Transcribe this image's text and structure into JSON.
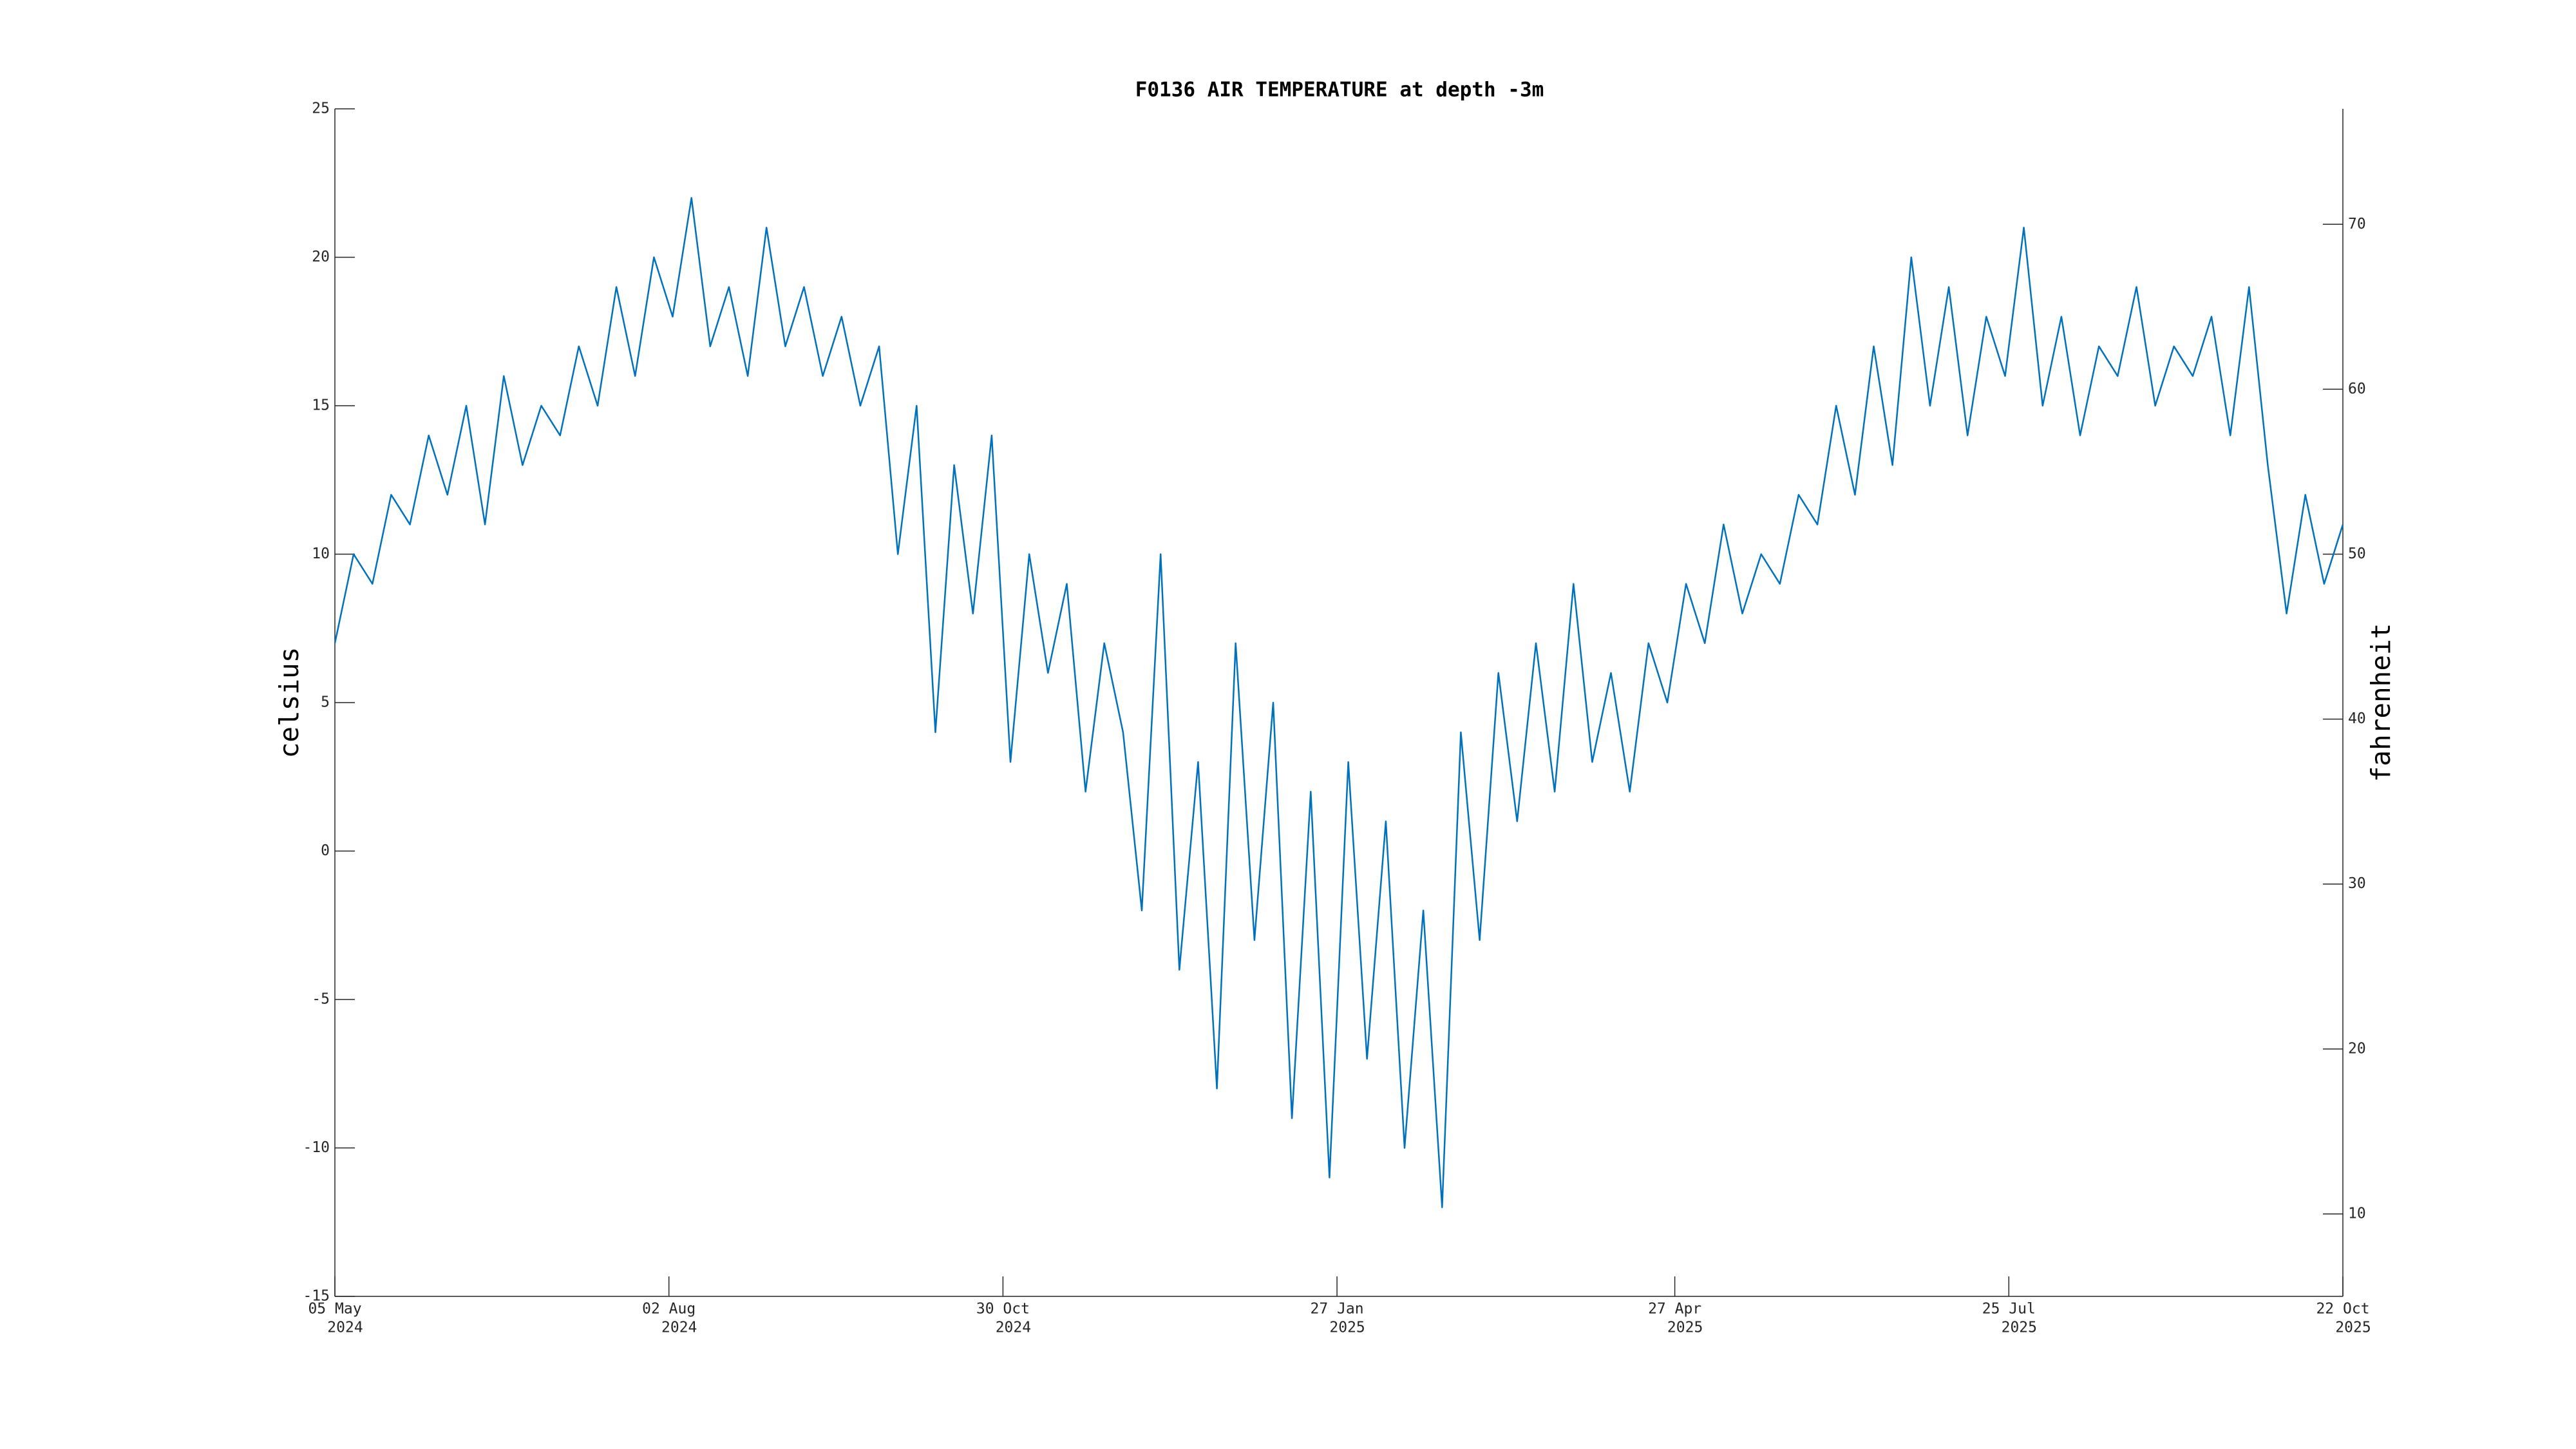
{
  "chart_data": {
    "type": "line",
    "title": "F0136 AIR TEMPERATURE at depth -3m",
    "ylabel": "celsius",
    "y2label": "fahrenheit",
    "x": [
      "2024-05-05",
      "2024-05-10",
      "2024-05-15",
      "2024-05-20",
      "2024-05-25",
      "2024-05-30",
      "2024-06-04",
      "2024-06-09",
      "2024-06-14",
      "2024-06-19",
      "2024-06-24",
      "2024-06-29",
      "2024-07-04",
      "2024-07-09",
      "2024-07-14",
      "2024-07-19",
      "2024-07-24",
      "2024-07-29",
      "2024-08-03",
      "2024-08-08",
      "2024-08-13",
      "2024-08-18",
      "2024-08-23",
      "2024-08-28",
      "2024-09-02",
      "2024-09-07",
      "2024-09-12",
      "2024-09-17",
      "2024-09-22",
      "2024-09-27",
      "2024-10-02",
      "2024-10-07",
      "2024-10-12",
      "2024-10-17",
      "2024-10-22",
      "2024-10-27",
      "2024-11-01",
      "2024-11-06",
      "2024-11-11",
      "2024-11-16",
      "2024-11-21",
      "2024-11-26",
      "2024-12-01",
      "2024-12-06",
      "2024-12-11",
      "2024-12-16",
      "2024-12-21",
      "2024-12-26",
      "2024-12-31",
      "2025-01-05",
      "2025-01-10",
      "2025-01-15",
      "2025-01-20",
      "2025-01-25",
      "2025-01-30",
      "2025-02-04",
      "2025-02-09",
      "2025-02-14",
      "2025-02-19",
      "2025-02-24",
      "2025-03-01",
      "2025-03-06",
      "2025-03-11",
      "2025-03-16",
      "2025-03-21",
      "2025-03-26",
      "2025-03-31",
      "2025-04-05",
      "2025-04-10",
      "2025-04-15",
      "2025-04-20",
      "2025-04-25",
      "2025-04-30",
      "2025-05-05",
      "2025-05-10",
      "2025-05-15",
      "2025-05-20",
      "2025-05-25",
      "2025-05-30",
      "2025-06-04",
      "2025-06-09",
      "2025-06-14",
      "2025-06-19",
      "2025-06-24",
      "2025-06-29",
      "2025-07-04",
      "2025-07-09",
      "2025-07-14",
      "2025-07-19",
      "2025-07-24",
      "2025-07-29",
      "2025-08-03",
      "2025-08-08",
      "2025-08-13",
      "2025-08-18",
      "2025-08-23",
      "2025-08-28",
      "2025-09-02",
      "2025-09-07",
      "2025-09-12",
      "2025-09-17",
      "2025-09-22",
      "2025-09-27",
      "2025-10-02",
      "2025-10-07",
      "2025-10-12",
      "2025-10-17",
      "2025-10-22"
    ],
    "series": [
      {
        "name": "celsius",
        "color": "#0072bd",
        "values": [
          7,
          10,
          9,
          12,
          11,
          14,
          12,
          15,
          11,
          16,
          13,
          15,
          14,
          17,
          15,
          19,
          16,
          20,
          18,
          22,
          17,
          19,
          16,
          21,
          17,
          19,
          16,
          18,
          15,
          17,
          10,
          15,
          4,
          13,
          8,
          14,
          3,
          10,
          6,
          9,
          2,
          7,
          4,
          -2,
          10,
          -4,
          3,
          -8,
          7,
          -3,
          5,
          -9,
          2,
          -11,
          3,
          -7,
          1,
          -10,
          -2,
          -12,
          4,
          -3,
          6,
          1,
          7,
          2,
          9,
          3,
          6,
          2,
          7,
          5,
          9,
          7,
          11,
          8,
          10,
          9,
          12,
          11,
          15,
          12,
          17,
          13,
          20,
          15,
          19,
          14,
          18,
          16,
          21,
          15,
          18,
          14,
          17,
          16,
          19,
          15,
          17,
          16,
          18,
          14,
          19,
          13,
          8,
          12,
          9,
          11
        ]
      }
    ],
    "xlim": [
      "2024-05-05",
      "2025-10-22"
    ],
    "xticks": [
      {
        "value": "2024-05-05",
        "label": [
          "05 May",
          "2024"
        ]
      },
      {
        "value": "2024-08-02",
        "label": [
          "02 Aug",
          "2024"
        ]
      },
      {
        "value": "2024-10-30",
        "label": [
          "30 Oct",
          "2024"
        ]
      },
      {
        "value": "2025-01-27",
        "label": [
          "27 Jan",
          "2025"
        ]
      },
      {
        "value": "2025-04-27",
        "label": [
          "27 Apr",
          "2025"
        ]
      },
      {
        "value": "2025-07-25",
        "label": [
          "25 Jul",
          "2025"
        ]
      },
      {
        "value": "2025-10-22",
        "label": [
          "22 Oct",
          "2025"
        ]
      }
    ],
    "ylim": [
      -15,
      25
    ],
    "yticks": [
      -15,
      -10,
      -5,
      0,
      5,
      10,
      15,
      20,
      25
    ],
    "y2lim": [
      5,
      77
    ],
    "y2ticks": [
      10,
      20,
      30,
      40,
      50,
      60,
      70
    ]
  }
}
